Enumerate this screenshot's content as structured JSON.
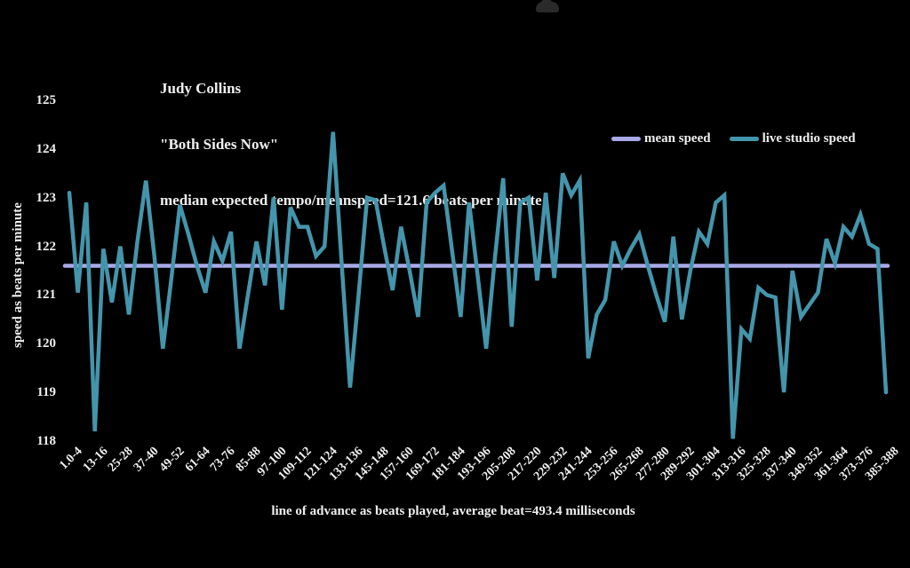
{
  "page": {
    "background": "#000000",
    "text_color": "#f0efef"
  },
  "cloud_icon": {
    "color": "#2a2a2a"
  },
  "chart_data": {
    "type": "line",
    "title_lines": [
      "Judy Collins",
      "\"Both Sides Now\"",
      "median expected tempo/meanspeed=121.6 beats per minute"
    ],
    "xlabel": "line of advance as beats played, average beat=493.4 milliseconds",
    "ylabel": "speed as beats per minute",
    "ylim": [
      118,
      125
    ],
    "y_ticks": [
      125,
      124,
      123,
      122,
      121,
      120,
      119,
      118
    ],
    "grid": false,
    "legend_position": "upper right",
    "legend": [
      {
        "label": "mean speed",
        "color": "#a9a9e8"
      },
      {
        "label": "live studio speed",
        "color": "#4495ac"
      }
    ],
    "mean_speed": 121.6,
    "x_tick_labels": [
      "1.0-4",
      "13-16",
      "25-28",
      "37-40",
      "49-52",
      "61-64",
      "73-76",
      "85-88",
      "97-100",
      "109-112",
      "121-124",
      "133-136",
      "145-148",
      "157-160",
      "169-172",
      "181-184",
      "193-196",
      "205-208",
      "217-220",
      "229-232",
      "241-244",
      "253-256",
      "265-268",
      "277-280",
      "289-292",
      "301-304",
      "313-316",
      "325-328",
      "337-340",
      "349-352",
      "361-364",
      "373-376",
      "385-388"
    ],
    "x_ticks_every_nth_point": 3,
    "series": [
      {
        "name": "live studio speed",
        "color": "#4495ac",
        "values": [
          123.1,
          121.05,
          122.9,
          118.2,
          121.95,
          120.85,
          122.0,
          120.6,
          122.1,
          123.35,
          121.8,
          119.9,
          121.35,
          122.85,
          122.25,
          121.6,
          121.05,
          122.1,
          121.7,
          122.3,
          119.9,
          121.0,
          122.1,
          121.2,
          123.0,
          120.7,
          122.8,
          122.4,
          122.4,
          121.8,
          122.0,
          124.35,
          121.7,
          119.1,
          121.0,
          123.0,
          122.95,
          122.0,
          121.1,
          122.4,
          121.5,
          120.55,
          122.9,
          123.1,
          123.25,
          121.9,
          120.55,
          122.9,
          121.4,
          119.9,
          121.7,
          123.4,
          120.35,
          122.9,
          123.0,
          121.3,
          123.1,
          121.35,
          123.5,
          123.05,
          123.35,
          119.7,
          120.6,
          120.9,
          122.1,
          121.6,
          121.95,
          122.25,
          121.6,
          121.0,
          120.45,
          122.2,
          120.5,
          121.5,
          122.3,
          122.05,
          122.9,
          123.05,
          118.05,
          120.3,
          120.1,
          121.15,
          121.0,
          120.95,
          119.0,
          121.5,
          120.55,
          120.8,
          121.05,
          122.15,
          121.65,
          122.4,
          122.2,
          122.65,
          122.05,
          121.95,
          119.0
        ]
      }
    ]
  }
}
